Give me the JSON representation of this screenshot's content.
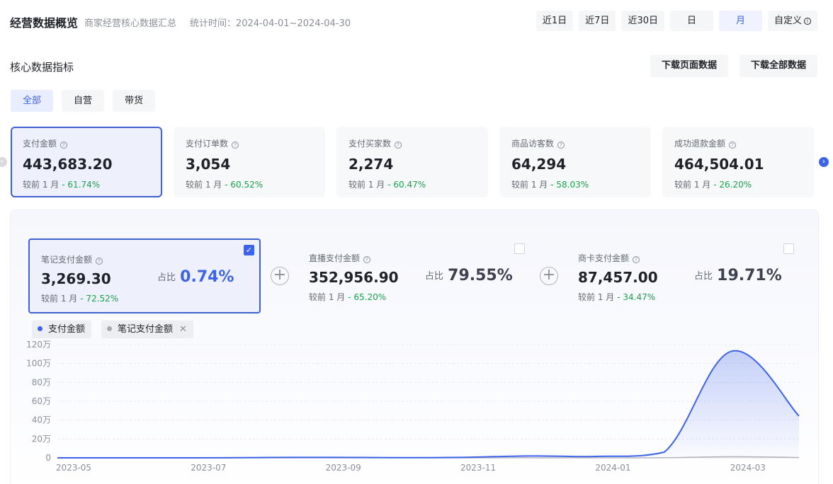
{
  "header": {
    "title": "经营数据概览",
    "subtitle": "商家经营核心数据汇总",
    "period": "统计时间：2024-04-01~2024-04-30",
    "ranges": [
      "近1日",
      "近7日",
      "近30日",
      "日",
      "月",
      "自定义"
    ],
    "active_range": "月",
    "custom_info_icon": "info-icon"
  },
  "section": {
    "title": "核心数据指标",
    "download_page": "下载页面数据",
    "download_all": "下载全部数据"
  },
  "categories": [
    "全部",
    "自营",
    "带货"
  ],
  "active_category": "全部",
  "compare_label": "较前 1 月",
  "share_label": "占比",
  "kpis": [
    {
      "label": "支付金额",
      "value": "443,683.20",
      "delta": "- 61.74%"
    },
    {
      "label": "支付订单数",
      "value": "3,054",
      "delta": "- 60.52%"
    },
    {
      "label": "支付买家数",
      "value": "2,274",
      "delta": "- 60.47%"
    },
    {
      "label": "商品访客数",
      "value": "64,294",
      "delta": "- 58.03%"
    },
    {
      "label": "成功退款金额",
      "value": "464,504.01",
      "delta": "- 26.20%"
    }
  ],
  "sub_metrics": [
    {
      "label": "笔记支付金额",
      "value": "3,269.30",
      "delta": "- 72.52%",
      "share": "0.74%",
      "checked": true
    },
    {
      "label": "直播支付金额",
      "value": "352,956.90",
      "delta": "- 65.20%",
      "share": "79.55%",
      "checked": false
    },
    {
      "label": "商卡支付金额",
      "value": "87,457.00",
      "delta": "- 34.47%",
      "share": "19.71%",
      "checked": false
    }
  ],
  "legend": [
    {
      "name": "支付金额",
      "color": "#3d63e8"
    },
    {
      "name": "笔记支付金额",
      "color": "#a6a9b0"
    }
  ],
  "colors": {
    "accent": "#3d63e8",
    "positive_delta": "#17a34a"
  },
  "chart_data": {
    "type": "area",
    "x": [
      "2023-05",
      "2023-06",
      "2023-07",
      "2023-08",
      "2023-09",
      "2023-10",
      "2023-11",
      "2023-12",
      "2024-01",
      "2024-02",
      "2024-03",
      "2024-04"
    ],
    "x_ticks": [
      "2023-05",
      "2023-07",
      "2023-09",
      "2023-11",
      "2024-01",
      "2024-03"
    ],
    "y_ticks": [
      "0",
      "20万",
      "40万",
      "60万",
      "80万",
      "100万",
      "120万"
    ],
    "ylim": [
      0,
      1200000
    ],
    "series": [
      {
        "name": "支付金额",
        "values": [
          0,
          0,
          0,
          3000,
          5000,
          2000,
          5000,
          20000,
          15000,
          60000,
          1130000,
          443683.2
        ]
      },
      {
        "name": "笔记支付金额",
        "values": [
          0,
          0,
          0,
          0,
          0,
          0,
          0,
          500,
          300,
          1000,
          12000,
          3269.3
        ]
      }
    ],
    "grid": true,
    "legend_position": "top-left"
  }
}
